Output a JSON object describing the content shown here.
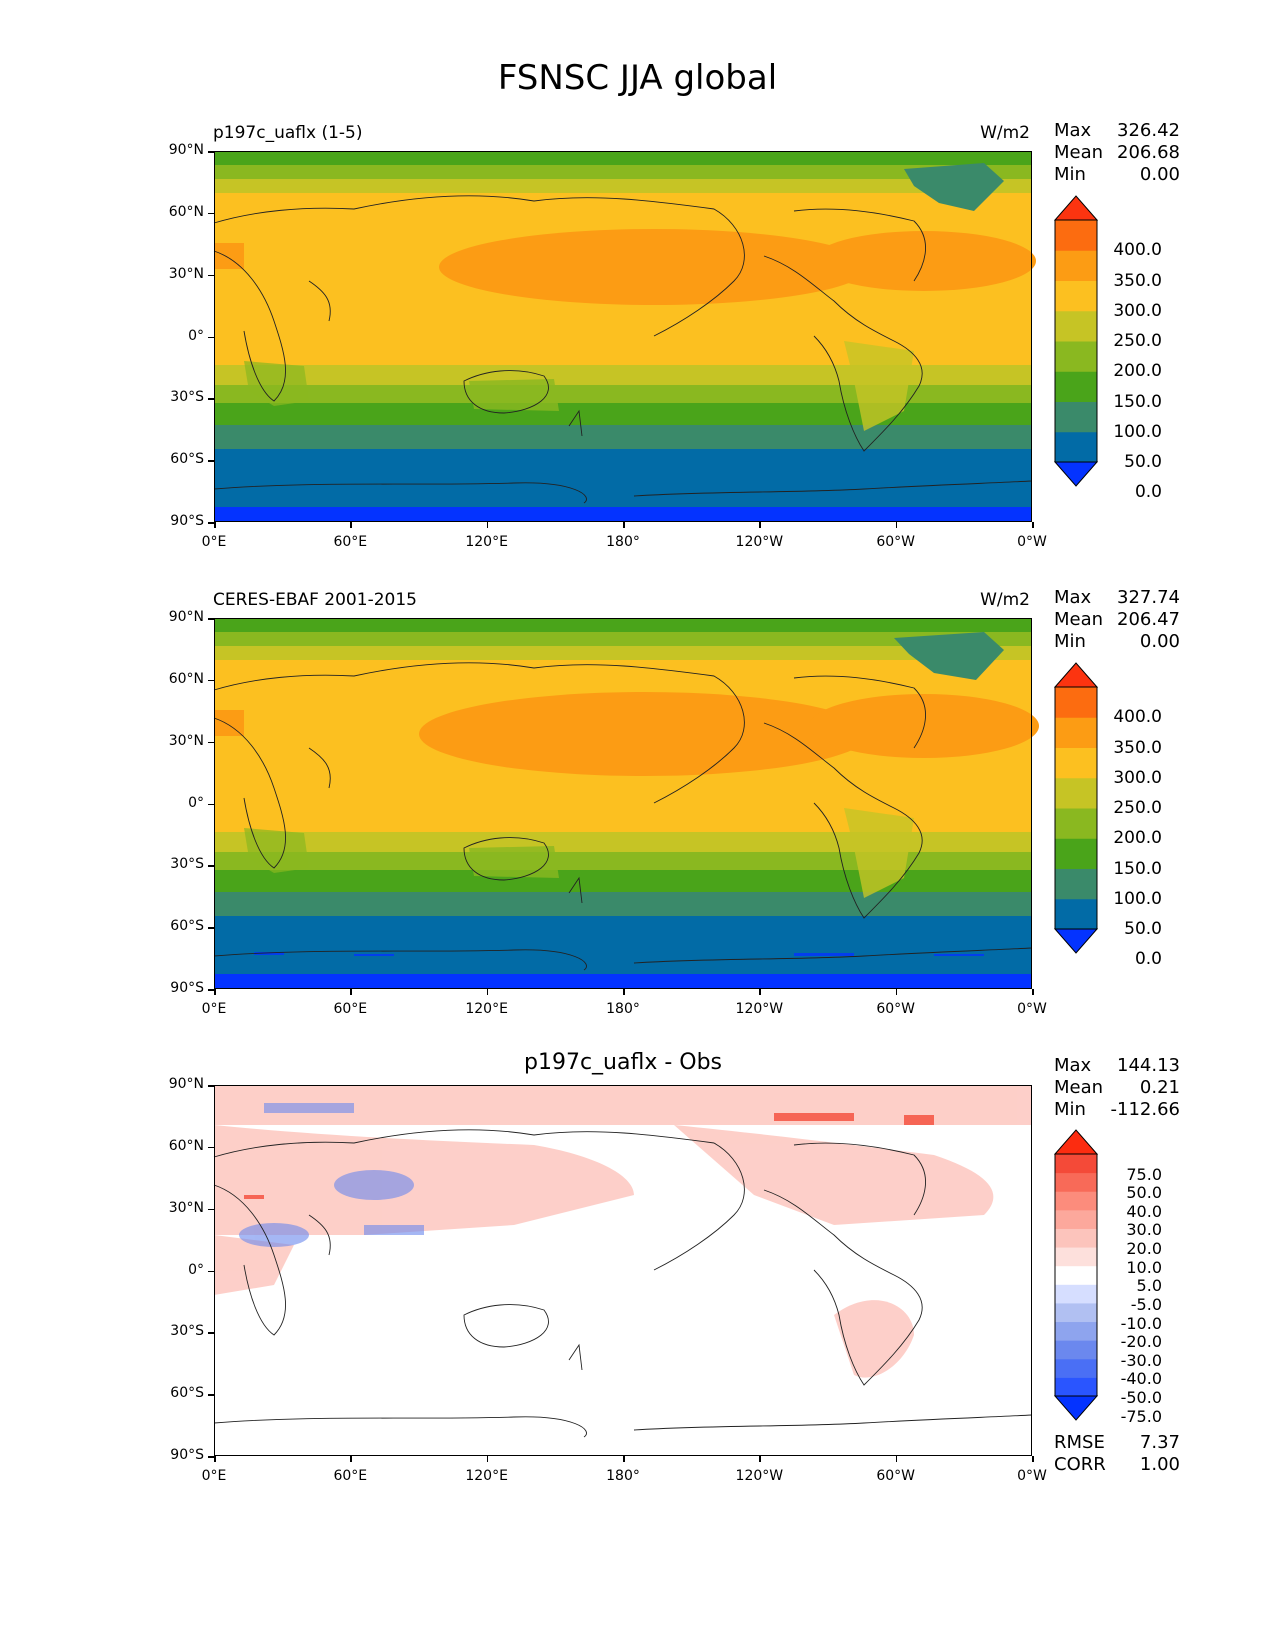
{
  "title": "FSNSC JJA global",
  "axes": {
    "lat_ticks": [
      "90°N",
      "60°N",
      "30°N",
      "0°",
      "30°S",
      "60°S",
      "90°S"
    ],
    "lon_ticks": [
      "0°E",
      "60°E",
      "120°E",
      "180°",
      "120°W",
      "60°W",
      "0°W"
    ]
  },
  "panels": [
    {
      "label": "p197c_uaflx (1-5)",
      "units": "W/m2",
      "stats": [
        {
          "name": "Max",
          "value": "326.42"
        },
        {
          "name": "Mean",
          "value": "206.68"
        },
        {
          "name": "Min",
          "value": "0.00"
        }
      ],
      "colorbar": {
        "labels": [
          "400.0",
          "350.0",
          "300.0",
          "250.0",
          "200.0",
          "150.0",
          "100.0",
          "50.0",
          "0.0"
        ],
        "colors": [
          "#0433ff",
          "#026ba6",
          "#3a8a6a",
          "#4aa41a",
          "#8ab820",
          "#c6c425",
          "#fcc020",
          "#fc9c14",
          "#fc6c10",
          "#fc3410"
        ]
      }
    },
    {
      "label": "CERES-EBAF 2001-2015",
      "units": "W/m2",
      "stats": [
        {
          "name": "Max",
          "value": "327.74"
        },
        {
          "name": "Mean",
          "value": "206.47"
        },
        {
          "name": "Min",
          "value": "0.00"
        }
      ],
      "colorbar": {
        "labels": [
          "400.0",
          "350.0",
          "300.0",
          "250.0",
          "200.0",
          "150.0",
          "100.0",
          "50.0",
          "0.0"
        ],
        "colors": [
          "#0433ff",
          "#026ba6",
          "#3a8a6a",
          "#4aa41a",
          "#8ab820",
          "#c6c425",
          "#fcc020",
          "#fc9c14",
          "#fc6c10",
          "#fc3410"
        ]
      }
    },
    {
      "label": "p197c_uaflx - Obs",
      "units": "",
      "stats": [
        {
          "name": "Max",
          "value": "144.13"
        },
        {
          "name": "Mean",
          "value": "0.21"
        },
        {
          "name": "Min",
          "value": "-112.66"
        }
      ],
      "colorbar": {
        "labels": [
          "75.0",
          "50.0",
          "40.0",
          "30.0",
          "20.0",
          "10.0",
          "5.0",
          "-5.0",
          "-10.0",
          "-20.0",
          "-30.0",
          "-40.0",
          "-50.0",
          "-75.0"
        ],
        "colors": [
          "#0433ff",
          "#2a55ff",
          "#4a6ff5",
          "#6b88ee",
          "#8ea4ee",
          "#b1c0f2",
          "#d6deff",
          "#ffffff",
          "#fde0dc",
          "#fcc4bc",
          "#fca89c",
          "#fc8c7c",
          "#f86a58",
          "#f44a38",
          "#fc2c10"
        ]
      },
      "metrics": [
        {
          "name": "RMSE",
          "value": "7.37"
        },
        {
          "name": "CORR",
          "value": "1.00"
        }
      ]
    }
  ]
}
